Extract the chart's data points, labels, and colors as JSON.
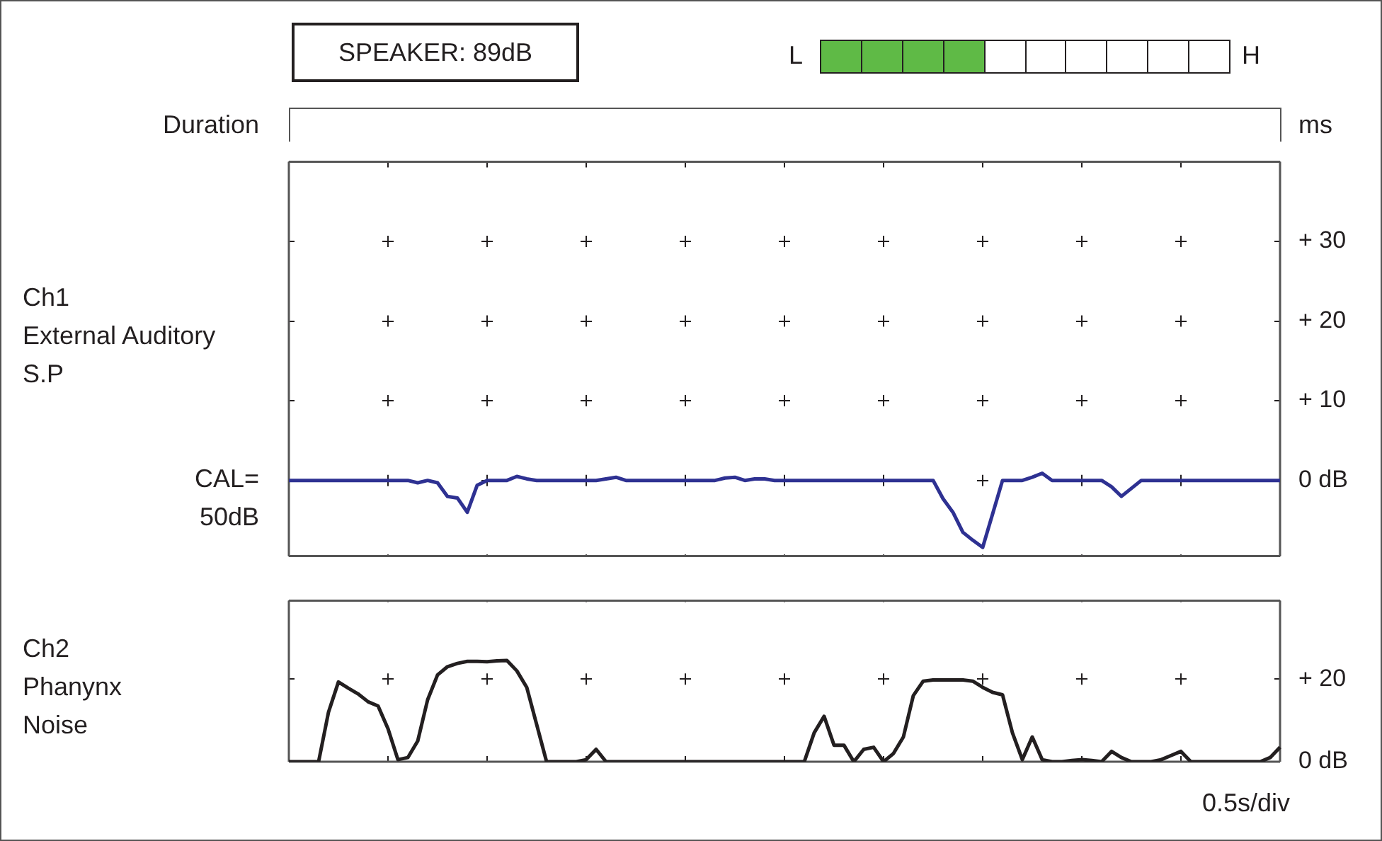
{
  "chart_data": [
    {
      "type": "line",
      "ylabel": "Ch1\nExternal Auditory\nS.P",
      "annotations": [
        "SPEAKER: 89dB",
        "L",
        "H",
        "Duration",
        "ms",
        "CAL=\n50dB"
      ],
      "categories": [
        null,
        null,
        null,
        null,
        null,
        null,
        null,
        null,
        null,
        null,
        null,
        null,
        null,
        null,
        null,
        null,
        null,
        null,
        null,
        null,
        null,
        null,
        null,
        null,
        null,
        null,
        null,
        null,
        null,
        null,
        null,
        null,
        null,
        null,
        null,
        null,
        null,
        null,
        null,
        null,
        null,
        null,
        null,
        null,
        null,
        null,
        null,
        null,
        null,
        null,
        null,
        null,
        null,
        null,
        null,
        null,
        null,
        null,
        null,
        null,
        null,
        null,
        null,
        null,
        null,
        null,
        null,
        null,
        null,
        null,
        null,
        null,
        null,
        null,
        null,
        null,
        null,
        null,
        null,
        null,
        null,
        null,
        null,
        null,
        null,
        null,
        null,
        null,
        null,
        null,
        null,
        null,
        null,
        null,
        null,
        null,
        null,
        null,
        null,
        null,
        null
      ],
      "series": [
        {
          "color": "#2e3192",
          "values": [
            0,
            0,
            0,
            0,
            0,
            0,
            0,
            0,
            0,
            0,
            0,
            0,
            0,
            -0.3,
            0,
            -0.3,
            -2,
            -2.2,
            -4,
            -0.6,
            0,
            0,
            0,
            0.5,
            0.2,
            0,
            0,
            0,
            0,
            0,
            0,
            0,
            0.2,
            0.4,
            0,
            0,
            0,
            0,
            0,
            0,
            0,
            0,
            0,
            0,
            0.3,
            0.4,
            0,
            0.2,
            0.2,
            0,
            0,
            0,
            0,
            0,
            0,
            0,
            0,
            0,
            0,
            0,
            0,
            0,
            0,
            0,
            0,
            0,
            -2.3,
            -4,
            -6.5,
            -7.5,
            -8.4,
            -4.2,
            0,
            0,
            0,
            0.4,
            0.9,
            0,
            0,
            0,
            0,
            0,
            0,
            -0.8,
            -2,
            -1,
            0,
            0,
            0,
            0,
            0,
            0,
            0,
            0,
            0,
            0,
            0,
            0,
            0,
            0,
            0
          ]
        }
      ],
      "ylim": [
        -9.5,
        40
      ],
      "yticks": [
        {
          "value": 0,
          "label": "0 dB"
        },
        {
          "value": 10,
          "label": "+ 10"
        },
        {
          "value": 20,
          "label": "+ 20"
        },
        {
          "value": 30,
          "label": "+ 30"
        },
        {
          "value": 40,
          "label": null
        }
      ],
      "grid": true,
      "tick_labels": "y"
    },
    {
      "type": "line",
      "ylabel": "Ch2\nPhanynx\nNoise",
      "annotations": [
        "0.5s/div"
      ],
      "categories": [
        null,
        null,
        null,
        null,
        null,
        null,
        null,
        null,
        null,
        null,
        null,
        null,
        null,
        null,
        null,
        null,
        null,
        null,
        null,
        null,
        null,
        null,
        null,
        null,
        null,
        null,
        null,
        null,
        null,
        null,
        null,
        null,
        null,
        null,
        null,
        null,
        null,
        null,
        null,
        null,
        null,
        null,
        null,
        null,
        null,
        null,
        null,
        null,
        null,
        null,
        null,
        null,
        null,
        null,
        null,
        null,
        null,
        null,
        null,
        null,
        null,
        null,
        null,
        null,
        null,
        null,
        null,
        null,
        null,
        null,
        null,
        null,
        null,
        null,
        null,
        null,
        null,
        null,
        null,
        null,
        null,
        null,
        null,
        null,
        null,
        null,
        null,
        null,
        null,
        null,
        null,
        null,
        null,
        null,
        null,
        null,
        null,
        null,
        null,
        null,
        null
      ],
      "series": [
        {
          "color": "#231f20",
          "values": [
            0,
            0,
            0,
            0,
            12,
            19.3,
            17.8,
            16.4,
            14.5,
            13.5,
            8,
            0.5,
            1,
            5,
            15,
            21,
            23,
            23.8,
            24.3,
            24.3,
            24.2,
            24.4,
            24.5,
            22,
            18,
            9,
            0,
            0,
            0,
            0,
            0.5,
            3,
            0,
            0,
            0,
            0,
            0,
            0,
            0,
            0,
            0,
            0,
            0,
            0,
            0,
            0,
            0,
            0,
            0,
            0,
            0,
            0,
            0,
            7,
            11,
            4,
            4,
            0,
            3,
            3.5,
            0,
            2,
            6,
            16,
            19.5,
            19.8,
            19.8,
            19.8,
            19.8,
            19.5,
            18,
            16.8,
            16.2,
            7,
            0.5,
            6,
            0.5,
            0,
            0,
            0.3,
            0.5,
            0.3,
            0,
            2.5,
            1,
            0,
            0,
            0,
            0.5,
            1.5,
            2.5,
            0,
            0,
            0,
            0,
            0,
            0,
            0,
            0,
            1,
            3.5
          ]
        }
      ],
      "ylim": [
        0,
        39
      ],
      "yticks": [
        {
          "value": 0,
          "label": "0 dB"
        },
        {
          "value": 20,
          "label": "+ 20"
        }
      ],
      "grid": true,
      "tick_labels": "y"
    }
  ]
}
